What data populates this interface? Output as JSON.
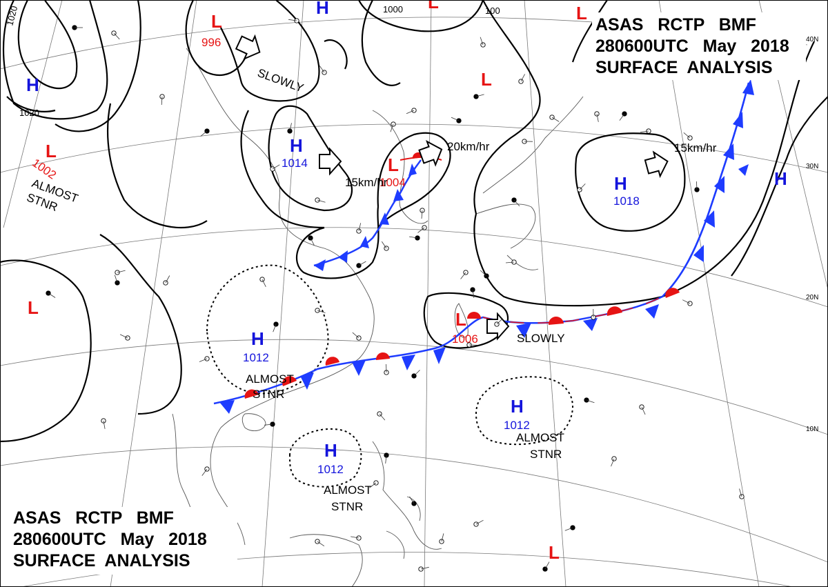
{
  "titles": {
    "top": [
      "ASAS   RCTP   BMF",
      "280600UTC   May   2018",
      "SURFACE  ANALYSIS"
    ],
    "bottom": [
      "ASAS   RCTP   BMF",
      "280600UTC   May   2018",
      "SURFACE  ANALYSIS"
    ]
  },
  "latitude_labels": [
    "40N",
    "30N",
    "20N",
    "10N"
  ],
  "pressure_centers": [
    {
      "type": "L",
      "value": "996"
    },
    {
      "type": "L",
      "value": "1002"
    },
    {
      "type": "H",
      "value": "1014"
    },
    {
      "type": "L",
      "value": "1004"
    },
    {
      "type": "H",
      "value": "1018"
    },
    {
      "type": "H",
      "value": "1012"
    },
    {
      "type": "L",
      "value": "1006"
    },
    {
      "type": "H",
      "value": "1012"
    },
    {
      "type": "H",
      "value": "1012"
    },
    {
      "type": "H",
      "value": ""
    },
    {
      "type": "H",
      "value": ""
    },
    {
      "type": "H",
      "value": ""
    },
    {
      "type": "L",
      "value": ""
    },
    {
      "type": "L",
      "value": ""
    },
    {
      "type": "L",
      "value": ""
    },
    {
      "type": "L",
      "value": ""
    },
    {
      "type": "L",
      "value": ""
    }
  ],
  "movement_labels": [
    "SLOWLY",
    "15km/hr",
    "20km/hr",
    "15km/hr",
    "SLOWLY"
  ],
  "status_labels": [
    [
      "ALMOST",
      "STNR"
    ],
    [
      "ALMOST",
      "STNR"
    ],
    [
      "ALMOST",
      "STNR"
    ],
    [
      "ALMOST",
      "STNR"
    ]
  ],
  "isobar_labels": [
    "1020",
    "1020",
    "1000",
    "100"
  ],
  "colors": {
    "high": "#1414dc",
    "low": "#e61414",
    "cold_front": "#1e3cff",
    "warm_front": "#e61414",
    "line": "#000000"
  }
}
